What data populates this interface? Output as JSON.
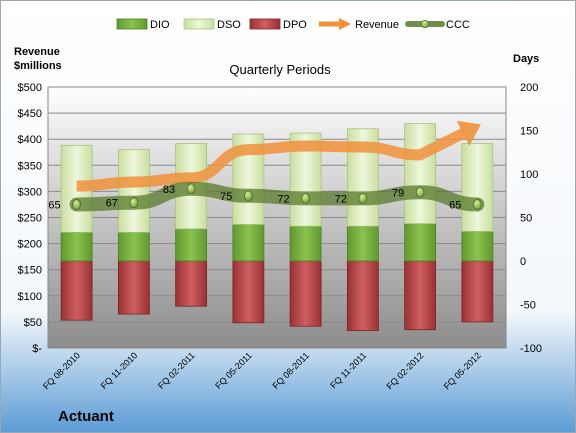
{
  "chart_data": {
    "type": "bar",
    "title": "Quarterly Periods",
    "company": "Actuant",
    "left_axis_title": [
      "Revenue",
      "$millions"
    ],
    "right_axis_title": "Days",
    "left_axis": {
      "min": 0,
      "max": 500,
      "step": 50,
      "ticks": [
        "$-",
        "$50",
        "$100",
        "$150",
        "$200",
        "$250",
        "$300",
        "$350",
        "$400",
        "$450",
        "$500"
      ]
    },
    "right_axis": {
      "min": -100,
      "max": 200,
      "step": 50,
      "ticks": [
        "-100",
        "-50",
        "0",
        "50",
        "100",
        "150",
        "200"
      ]
    },
    "categories": [
      "FQ 08-2010",
      "FQ 11-2010",
      "FQ 02-2011",
      "FQ 05-2011",
      "FQ 08-2011",
      "FQ 11-2011",
      "FQ 02-2012",
      "FQ 05-2012"
    ],
    "series": [
      {
        "name": "DIO",
        "color": "#7ab040",
        "values": [
          33,
          33,
          37,
          42,
          40,
          40,
          43,
          34
        ]
      },
      {
        "name": "DSO",
        "color": "#d8ebb4",
        "values": [
          100,
          95,
          98,
          104,
          107,
          112,
          115,
          101
        ]
      },
      {
        "name": "DPO",
        "color": "#b84a4c",
        "values": [
          -68,
          -61,
          -52,
          -71,
          -75,
          -80,
          -79,
          -70
        ]
      },
      {
        "name": "Revenue",
        "color": "#f0913a",
        "values": [
          310,
          318,
          326,
          380,
          387,
          385,
          370,
          425
        ]
      },
      {
        "name": "CCC",
        "color": "#5a7a2c",
        "values": [
          65,
          67,
          83,
          75,
          72,
          72,
          79,
          65
        ]
      }
    ],
    "ccc_labels": [
      "65",
      "67",
      "83",
      "75",
      "72",
      "72",
      "79",
      "65"
    ],
    "legend_position": "top",
    "grid": true
  }
}
